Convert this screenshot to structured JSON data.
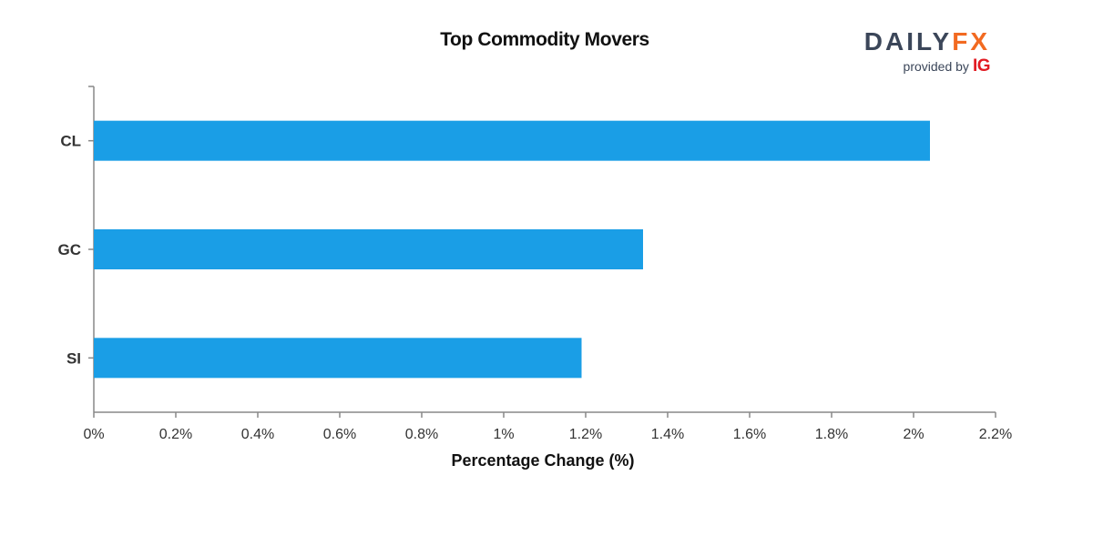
{
  "chart_data": {
    "type": "bar",
    "orientation": "horizontal",
    "title": "Top Commodity Movers",
    "xlabel": "Percentage Change (%)",
    "ylabel": "",
    "categories": [
      "CL",
      "GC",
      "SI"
    ],
    "values": [
      2.04,
      1.34,
      1.19
    ],
    "xlim": [
      0,
      2.2
    ],
    "x_ticks": [
      0,
      0.2,
      0.4,
      0.6,
      0.8,
      1,
      1.2,
      1.4,
      1.6,
      1.8,
      2,
      2.2
    ],
    "x_tick_labels": [
      "0%",
      "0.2%",
      "0.4%",
      "0.6%",
      "0.8%",
      "1%",
      "1.2%",
      "1.4%",
      "1.6%",
      "1.8%",
      "2%",
      "2.2%"
    ],
    "bar_color": "#1a9ee6",
    "grid": false,
    "legend": "none"
  },
  "brand": {
    "name_part1": "DAILY",
    "name_part2": "FX",
    "provided_by": "provided by",
    "partner": "IG",
    "colors": {
      "daily": "#3b4659",
      "fx": "#f26a21",
      "partner": "#e21b23"
    }
  }
}
